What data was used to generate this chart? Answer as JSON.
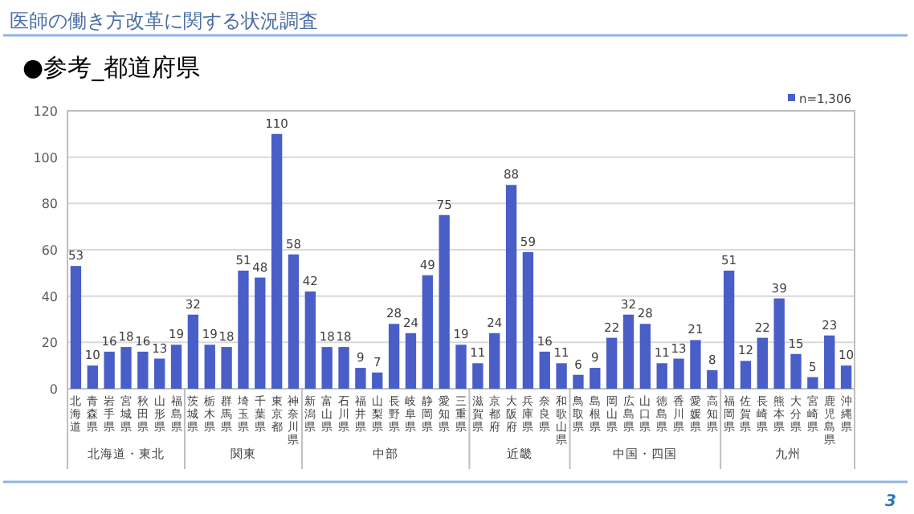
{
  "chart_data": {
    "type": "bar",
    "title": "医師の働き方改革に関する状況調査",
    "subtitle": "●参考_都道府県",
    "categories": [
      "北海道",
      "青森県",
      "岩手県",
      "宮城県",
      "秋田県",
      "山形県",
      "福島県",
      "茨城県",
      "栃木県",
      "群馬県",
      "埼玉県",
      "千葉県",
      "東京都",
      "神奈川県",
      "新潟県",
      "富山県",
      "石川県",
      "福井県",
      "山梨県",
      "長野県",
      "岐阜県",
      "静岡県",
      "愛知県",
      "三重県",
      "滋賀県",
      "京都府",
      "大阪府",
      "兵庫県",
      "奈良県",
      "和歌山県",
      "鳥取県",
      "島根県",
      "岡山県",
      "広島県",
      "山口県",
      "徳島県",
      "香川県",
      "愛媛県",
      "高知県",
      "福岡県",
      "佐賀県",
      "長崎県",
      "熊本県",
      "大分県",
      "宮崎県",
      "鹿児島県",
      "沖縄県"
    ],
    "series": [
      {
        "name": "n=1,306",
        "color": "#4a5ec8",
        "values": [
          53,
          10,
          16,
          18,
          16,
          13,
          19,
          32,
          19,
          18,
          51,
          48,
          110,
          58,
          42,
          18,
          18,
          9,
          7,
          28,
          24,
          49,
          75,
          19,
          11,
          24,
          88,
          59,
          16,
          11,
          6,
          9,
          22,
          32,
          28,
          11,
          13,
          21,
          8,
          51,
          12,
          22,
          39,
          15,
          5,
          23,
          10
        ]
      }
    ],
    "ylim": [
      0,
      120
    ],
    "yticks": [
      0,
      20,
      40,
      60,
      80,
      100,
      120
    ],
    "grid": "y",
    "legend": "top right",
    "data_labels": true,
    "annotations": [
      "北海道・東北",
      "関東",
      "中部",
      "近畿",
      "中国・四国",
      "九州",
      "3"
    ]
  }
}
